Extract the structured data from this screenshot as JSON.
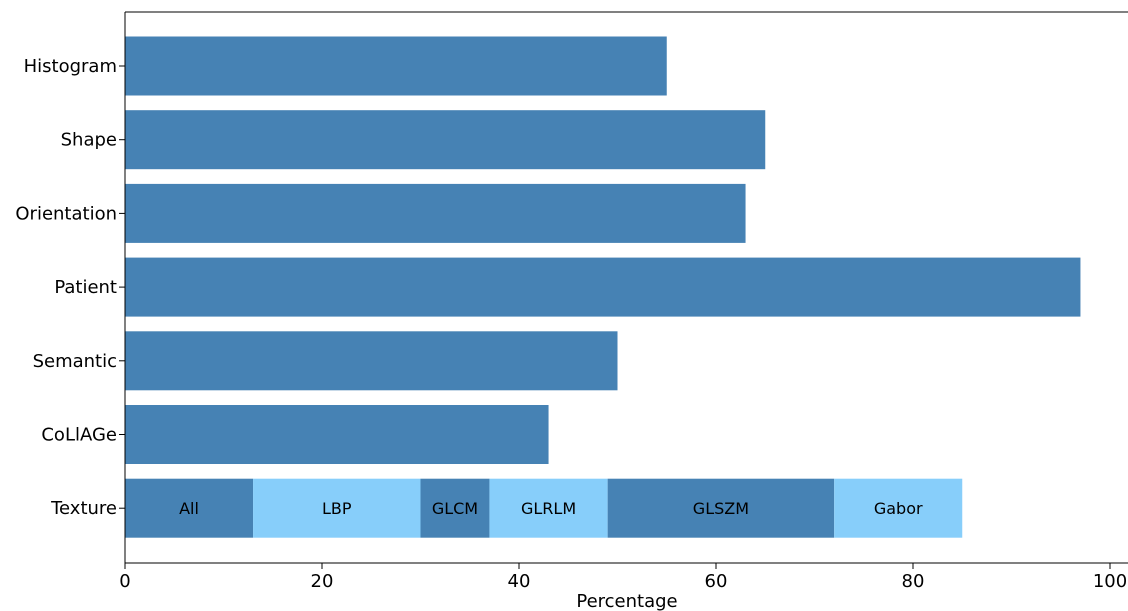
{
  "chart_data": {
    "type": "bar",
    "orientation": "horizontal",
    "title": "",
    "xlabel": "Percentage",
    "ylabel": "",
    "xlim": [
      0,
      100
    ],
    "xticks": [
      "0",
      "20",
      "40",
      "60",
      "80",
      "100"
    ],
    "grid": false,
    "categories": [
      "Histogram",
      "Shape",
      "Orientation",
      "Patient",
      "Semantic",
      "CoLlAGe",
      "Texture"
    ],
    "values": [
      55,
      65,
      63,
      97,
      50,
      43,
      null
    ],
    "bar_color": "#4682b4",
    "stacked": {
      "category": "Texture",
      "segments": [
        {
          "label": "All",
          "start": 0,
          "end": 13,
          "color": "#4682b4"
        },
        {
          "label": "LBP",
          "start": 13,
          "end": 30,
          "color": "#87cefa"
        },
        {
          "label": "GLCM",
          "start": 30,
          "end": 37,
          "color": "#4682b4"
        },
        {
          "label": "GLRLM",
          "start": 37,
          "end": 49,
          "color": "#87cefa"
        },
        {
          "label": "GLSZM",
          "start": 49,
          "end": 72,
          "color": "#4682b4"
        },
        {
          "label": "Gabor",
          "start": 72,
          "end": 85,
          "color": "#87cefa"
        }
      ]
    }
  }
}
